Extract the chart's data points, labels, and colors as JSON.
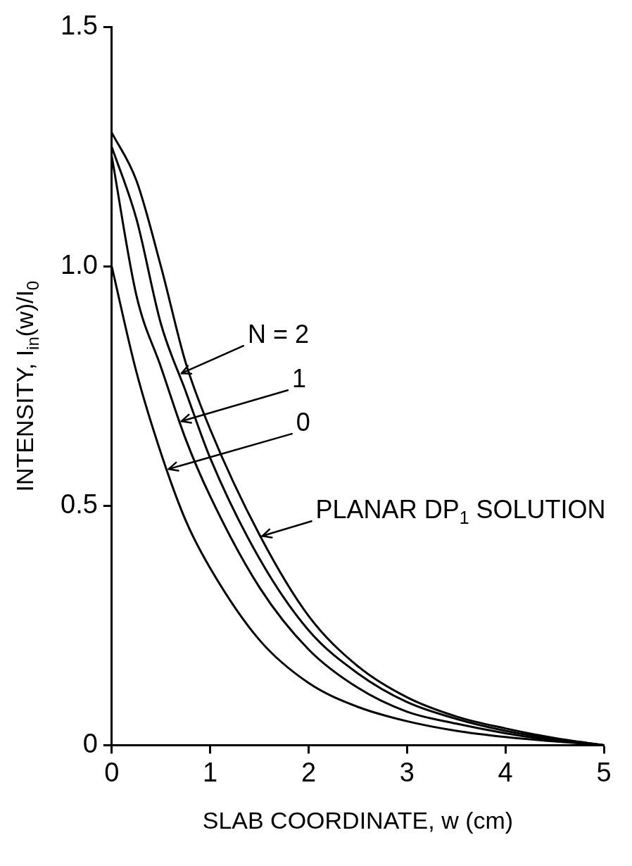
{
  "chart_data": {
    "type": "line",
    "xlabel": "SLAB COORDINATE, w (cm)",
    "ylabel": "INTENSITY, I$_{in}$(w)/I$_{0}$",
    "x": [
      0,
      0.25,
      0.5,
      0.75,
      1,
      1.5,
      2,
      2.5,
      3,
      3.5,
      4,
      4.5,
      5
    ],
    "series": [
      {
        "color": "#000000",
        "values": [
          1.25,
          1.1,
          0.88,
          0.74,
          0.6,
          0.39,
          0.24,
          0.15,
          0.09,
          0.055,
          0.03,
          0.013,
          0
        ]
      },
      {
        "color": "#000000",
        "values": [
          1.23,
          0.94,
          0.79,
          0.64,
          0.52,
          0.33,
          0.2,
          0.12,
          0.07,
          0.045,
          0.025,
          0.01,
          0
        ]
      },
      {
        "color": "#000000",
        "values": [
          1.0,
          0.78,
          0.61,
          0.47,
          0.37,
          0.22,
          0.13,
          0.08,
          0.05,
          0.03,
          0.017,
          0.008,
          0
        ]
      },
      {
        "color": "#000000",
        "values": [
          1.28,
          1.18,
          1.0,
          0.8,
          0.66,
          0.44,
          0.27,
          0.165,
          0.1,
          0.06,
          0.035,
          0.015,
          0
        ]
      }
    ],
    "annotations": [
      {
        "text": "N = 2",
        "x": 0.68,
        "y": 0.78
      },
      {
        "text": "1",
        "x": 0.68,
        "y": 0.68
      },
      {
        "text": "0",
        "x": 0.55,
        "y": 0.58
      },
      {
        "text": "PLANAR DP$_{1}$ SOLUTION",
        "x": 1.5,
        "y": 0.44
      }
    ],
    "xlim": [
      0,
      5
    ],
    "ylim": [
      0,
      1.5
    ],
    "xticks": [
      0,
      1,
      2,
      3,
      4,
      5
    ],
    "yticks": [
      0,
      0.5,
      {
        "value": 1,
        "label": "1.0"
      },
      1.5
    ],
    "grid": false,
    "legend": false,
    "marker": "none",
    "line_style": "solid"
  }
}
